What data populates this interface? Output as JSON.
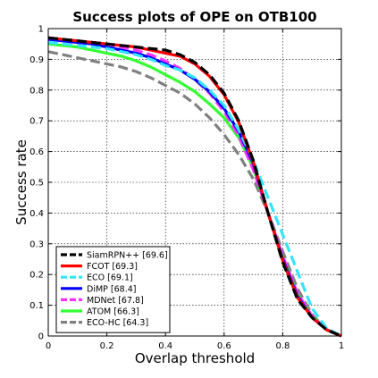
{
  "chart_data": {
    "type": "line",
    "title": "Success plots of OPE on OTB100",
    "xlabel": "Overlap threshold",
    "ylabel": "Success rate",
    "xlim": [
      0,
      1
    ],
    "ylim": [
      0,
      1
    ],
    "xticks": [
      "0",
      "0.2",
      "0.4",
      "0.6",
      "0.8",
      "1"
    ],
    "yticks": [
      "0",
      "0.1",
      "0.2",
      "0.3",
      "0.4",
      "0.5",
      "0.6",
      "0.7",
      "0.8",
      "0.9",
      "1"
    ],
    "grid": true,
    "legend_position": "bottom-left",
    "x": [
      0,
      0.05,
      0.1,
      0.15,
      0.2,
      0.25,
      0.3,
      0.35,
      0.4,
      0.45,
      0.5,
      0.55,
      0.6,
      0.65,
      0.7,
      0.75,
      0.8,
      0.85,
      0.9,
      0.95,
      1
    ],
    "series": [
      {
        "name": "SiamRPN++ [69.6]",
        "color": "#000000",
        "dash": "dashed",
        "values": [
          0.97,
          0.965,
          0.96,
          0.955,
          0.95,
          0.945,
          0.94,
          0.935,
          0.93,
          0.915,
          0.89,
          0.85,
          0.79,
          0.7,
          0.57,
          0.4,
          0.24,
          0.12,
          0.06,
          0.02,
          0.0
        ]
      },
      {
        "name": "FCOT [69.3]",
        "color": "#ff0000",
        "dash": "solid",
        "values": [
          0.97,
          0.965,
          0.96,
          0.955,
          0.95,
          0.945,
          0.94,
          0.93,
          0.92,
          0.91,
          0.885,
          0.845,
          0.785,
          0.695,
          0.565,
          0.4,
          0.245,
          0.125,
          0.06,
          0.02,
          0.0
        ]
      },
      {
        "name": "ECO [69.1]",
        "color": "#33e5ff",
        "dash": "dashed",
        "values": [
          0.955,
          0.95,
          0.945,
          0.94,
          0.935,
          0.925,
          0.915,
          0.9,
          0.88,
          0.865,
          0.84,
          0.8,
          0.75,
          0.67,
          0.57,
          0.45,
          0.33,
          0.21,
          0.09,
          0.025,
          0.0
        ]
      },
      {
        "name": "DiMP [68.4]",
        "color": "#0000ff",
        "dash": "solid",
        "values": [
          0.965,
          0.96,
          0.955,
          0.95,
          0.94,
          0.93,
          0.92,
          0.905,
          0.885,
          0.865,
          0.835,
          0.795,
          0.74,
          0.665,
          0.56,
          0.4,
          0.25,
          0.13,
          0.06,
          0.02,
          0.0
        ]
      },
      {
        "name": "MDNet [67.8]",
        "color": "#ff33ff",
        "dash": "dashed",
        "values": [
          0.97,
          0.965,
          0.96,
          0.955,
          0.95,
          0.94,
          0.93,
          0.915,
          0.895,
          0.87,
          0.835,
          0.79,
          0.73,
          0.65,
          0.54,
          0.4,
          0.26,
          0.14,
          0.065,
          0.02,
          0.0
        ]
      },
      {
        "name": "ATOM [66.3]",
        "color": "#33ff33",
        "dash": "solid",
        "values": [
          0.95,
          0.945,
          0.94,
          0.93,
          0.92,
          0.91,
          0.895,
          0.875,
          0.85,
          0.825,
          0.795,
          0.755,
          0.71,
          0.645,
          0.545,
          0.4,
          0.255,
          0.135,
          0.065,
          0.02,
          0.0
        ]
      },
      {
        "name": "ECO-HC [64.3]",
        "color": "#808080",
        "dash": "dashed",
        "values": [
          0.925,
          0.915,
          0.905,
          0.895,
          0.885,
          0.875,
          0.86,
          0.84,
          0.815,
          0.79,
          0.755,
          0.71,
          0.655,
          0.59,
          0.51,
          0.4,
          0.275,
          0.155,
          0.07,
          0.02,
          0.0
        ]
      }
    ]
  }
}
